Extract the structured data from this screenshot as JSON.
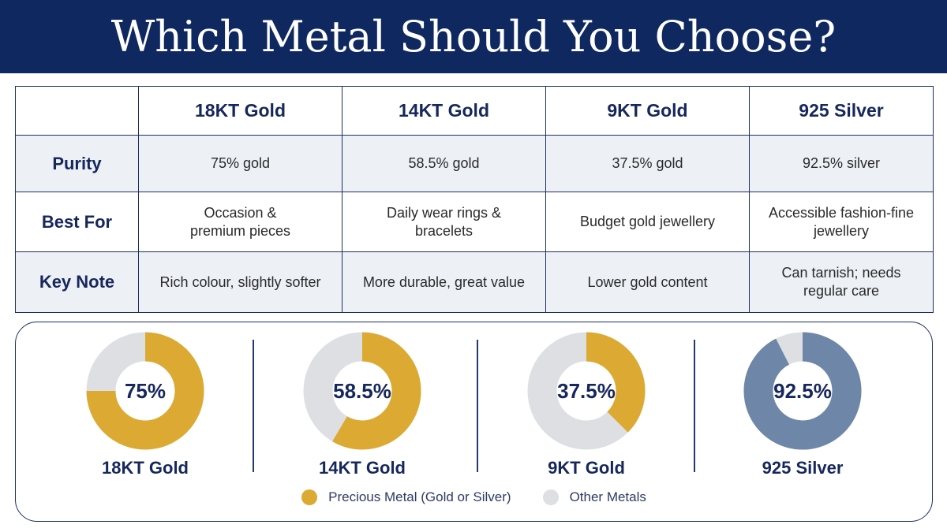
{
  "title": "Which Metal Should You Choose?",
  "table": {
    "columns": [
      "18KT Gold",
      "14KT Gold",
      "9KT Gold",
      "925 Silver"
    ],
    "rows": [
      {
        "label": "Purity",
        "cells": [
          "75% gold",
          "58.5% gold",
          "37.5% gold",
          "92.5% silver"
        ]
      },
      {
        "label": "Best For",
        "cells": [
          "Occasion & premium pieces",
          "Daily wear rings & bracelets",
          "Budget gold jewellery",
          "Accessible fashion-fine jewellery"
        ]
      },
      {
        "label": "Key Note",
        "cells": [
          "Rich colour, slightly softer",
          "More durable, great value",
          "Lower gold content",
          "Can tarnish; needs regular care"
        ]
      }
    ]
  },
  "chart_data": {
    "type": "pie",
    "variant": "donut",
    "charts": [
      {
        "name": "18KT Gold",
        "label": "75%",
        "value": 75,
        "color": "#dcaa32"
      },
      {
        "name": "14KT Gold",
        "label": "58.5%",
        "value": 58.5,
        "color": "#dcaa32"
      },
      {
        "name": "9KT Gold",
        "label": "37.5%",
        "value": 37.5,
        "color": "#dcaa32"
      },
      {
        "name": "925 Silver",
        "label": "92.5%",
        "value": 92.5,
        "color": "#6e86a8"
      }
    ],
    "other_color": "#dedfe2",
    "legend": [
      {
        "label": "Precious Metal (Gold or Silver)",
        "color": "#dcaa32"
      },
      {
        "label": "Other Metals",
        "color": "#dedfe2"
      }
    ],
    "legend_position": "bottom"
  }
}
